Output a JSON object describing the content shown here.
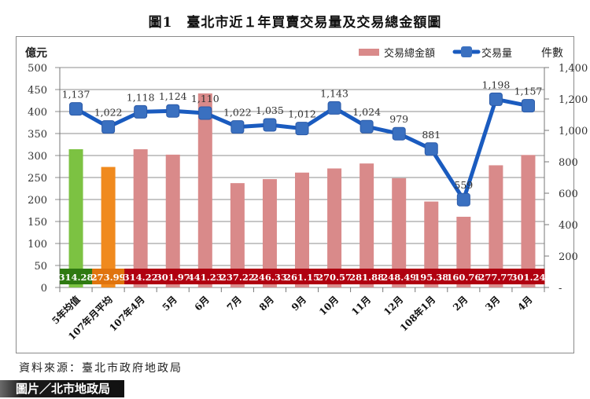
{
  "title": "圖1　臺北市近１年買賣交易量及交易總金額圖",
  "source": "資料來源：臺北市政府地政局",
  "credit": "圖片／北市地政局",
  "colors": {
    "bar_default": "#d98a8a",
    "bar_5yr_avg": "#7cc242",
    "bar_107_avg": "#f08a1e",
    "line": "#1a5bbf",
    "marker": "#3a70c0",
    "label_strip": "#b00010",
    "label_strip_5yr": "#2f7a12",
    "label_strip_107": "#e0740e"
  },
  "chart_data": {
    "type": "bar+line",
    "title": "圖1　臺北市近１年買賣交易量及交易總金額圖",
    "categories": [
      "5年均值",
      "107年月平均",
      "107年4月",
      "5月",
      "6月",
      "7月",
      "8月",
      "9月",
      "10月",
      "11月",
      "12月",
      "108年1月",
      "2月",
      "3月",
      "4月"
    ],
    "series": [
      {
        "name": "交易總金額",
        "type": "bar",
        "axis": "left",
        "unit": "億元",
        "values": [
          314.28,
          273.99,
          314.22,
          301.97,
          441.23,
          237.22,
          246.33,
          261.15,
          270.57,
          281.88,
          248.49,
          195.38,
          160.76,
          277.77,
          301.24
        ],
        "labels": [
          "314.28",
          "273.99",
          "314.22",
          "301.97",
          "441.23",
          "237.22",
          "246.33",
          "261.15",
          "270.57",
          "281.88",
          "248.49",
          "195.38",
          "160.76",
          "277.77",
          "301.24"
        ]
      },
      {
        "name": "交易量",
        "type": "line",
        "axis": "right",
        "unit": "件數",
        "values": [
          1137,
          1022,
          1118,
          1124,
          1110,
          1022,
          1035,
          1012,
          1143,
          1024,
          979,
          881,
          559,
          1198,
          1157
        ],
        "labels": [
          "1,137",
          "1,022",
          "1,118",
          "1,124",
          "1,110",
          "1,022",
          "1,035",
          "1,012",
          "1,143",
          "1,024",
          "979",
          "881",
          "559",
          "1,198",
          "1,157"
        ]
      }
    ],
    "ylabel": "億元",
    "ylim": [
      0,
      500
    ],
    "yticks": [
      "0",
      "50",
      "100",
      "150",
      "200",
      "250",
      "300",
      "350",
      "400",
      "450",
      "500"
    ],
    "y2label": "件數",
    "y2lim": [
      0,
      1400
    ],
    "y2ticks": [
      "-",
      "200",
      "400",
      "600",
      "800",
      "1,000",
      "1,200",
      "1,400"
    ],
    "legend": [
      "交易總金額",
      "交易量"
    ],
    "legend_position": "top-right",
    "grid": true
  }
}
